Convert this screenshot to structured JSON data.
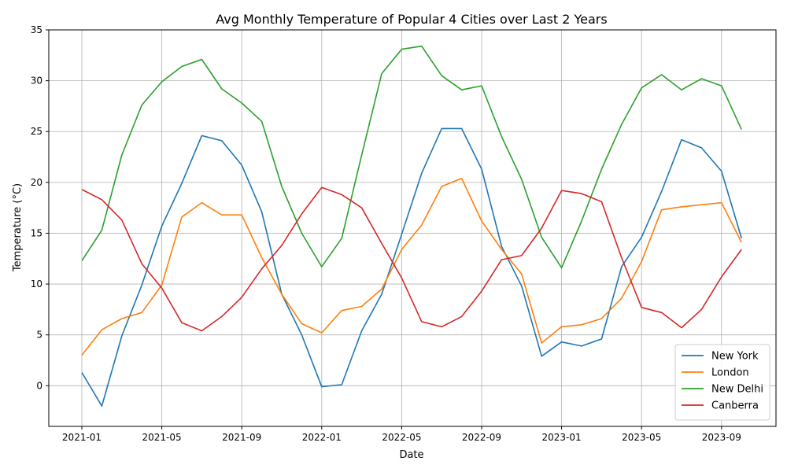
{
  "chart_data": {
    "type": "line",
    "title": "Avg Monthly Temperature of Popular 4 Cities over Last 2 Years",
    "xlabel": "Date",
    "ylabel": "Temperature (°C)",
    "x": [
      "2021-01",
      "2021-02",
      "2021-03",
      "2021-04",
      "2021-05",
      "2021-06",
      "2021-07",
      "2021-08",
      "2021-09",
      "2021-10",
      "2021-11",
      "2021-12",
      "2022-01",
      "2022-02",
      "2022-03",
      "2022-04",
      "2022-05",
      "2022-06",
      "2022-07",
      "2022-08",
      "2022-09",
      "2022-10",
      "2022-11",
      "2022-12",
      "2023-01",
      "2023-02",
      "2023-03",
      "2023-04",
      "2023-05",
      "2023-06",
      "2023-07",
      "2023-08",
      "2023-09",
      "2023-10"
    ],
    "x_ticks": [
      "2021-01",
      "2021-05",
      "2021-09",
      "2022-01",
      "2022-05",
      "2022-09",
      "2023-01",
      "2023-05",
      "2023-09"
    ],
    "ylim": [
      -4,
      35
    ],
    "y_ticks": [
      0,
      5,
      10,
      15,
      20,
      25,
      30,
      35
    ],
    "grid": true,
    "legend_position": "bottom-right",
    "series": [
      {
        "name": "New York",
        "color": "#1f77b4",
        "values": [
          1.3,
          -2.0,
          4.9,
          9.9,
          15.7,
          19.9,
          24.6,
          24.1,
          21.7,
          17.1,
          9.0,
          5.0,
          -0.1,
          0.1,
          5.4,
          9.0,
          14.9,
          20.9,
          25.3,
          25.3,
          21.3,
          13.7,
          9.8,
          2.9,
          4.3,
          3.9,
          4.6,
          11.7,
          14.6,
          19.1,
          24.2,
          23.4,
          21.1,
          14.5
        ]
      },
      {
        "name": "London",
        "color": "#ff7f0e",
        "values": [
          3.0,
          5.5,
          6.6,
          7.2,
          9.9,
          16.6,
          18.0,
          16.8,
          16.8,
          12.6,
          9.0,
          6.1,
          5.2,
          7.4,
          7.8,
          9.5,
          13.4,
          15.8,
          19.6,
          20.4,
          16.2,
          13.4,
          11.0,
          4.2,
          5.8,
          6.0,
          6.6,
          8.6,
          12.2,
          17.3,
          17.6,
          17.8,
          18.0,
          14.1
        ]
      },
      {
        "name": "New Delhi",
        "color": "#2ca02c",
        "values": [
          12.3,
          15.3,
          22.7,
          27.6,
          29.9,
          31.4,
          32.1,
          29.2,
          27.8,
          26.0,
          19.6,
          15.0,
          11.7,
          14.5,
          22.7,
          30.7,
          33.1,
          33.4,
          30.5,
          29.1,
          29.5,
          24.5,
          20.3,
          14.6,
          11.6,
          16.2,
          21.3,
          25.7,
          29.3,
          30.6,
          29.1,
          30.2,
          29.5,
          25.2
        ]
      },
      {
        "name": "Canberra",
        "color": "#d62728",
        "values": [
          19.3,
          18.3,
          16.3,
          12.0,
          9.6,
          6.2,
          5.4,
          6.8,
          8.7,
          11.5,
          13.8,
          16.9,
          19.5,
          18.8,
          17.5,
          14.0,
          10.6,
          6.3,
          5.8,
          6.8,
          9.3,
          12.4,
          12.8,
          15.5,
          19.2,
          18.9,
          18.1,
          12.6,
          7.7,
          7.2,
          5.7,
          7.5,
          10.7,
          13.4
        ]
      }
    ]
  }
}
